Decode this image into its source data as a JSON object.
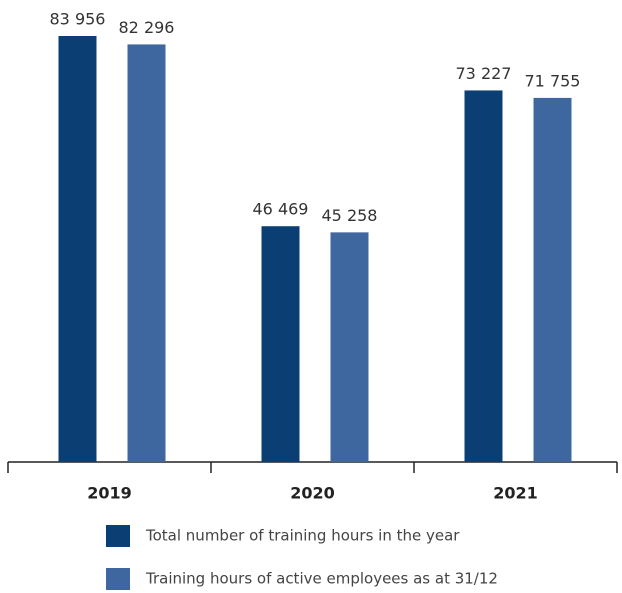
{
  "chart_data": {
    "type": "bar",
    "categories": [
      "2019",
      "2020",
      "2021"
    ],
    "series": [
      {
        "name": "Total number of training hours in the year",
        "color": "#0b3f73",
        "values": [
          83956,
          46469,
          73227
        ],
        "value_labels": [
          "83 956",
          "46 469",
          "73 227"
        ]
      },
      {
        "name": "Training hours of active employees as at 31/12",
        "color": "#3d679e",
        "values": [
          82296,
          45258,
          71755
        ],
        "value_labels": [
          "82 296",
          "45 258",
          "71 755"
        ]
      }
    ]
  }
}
